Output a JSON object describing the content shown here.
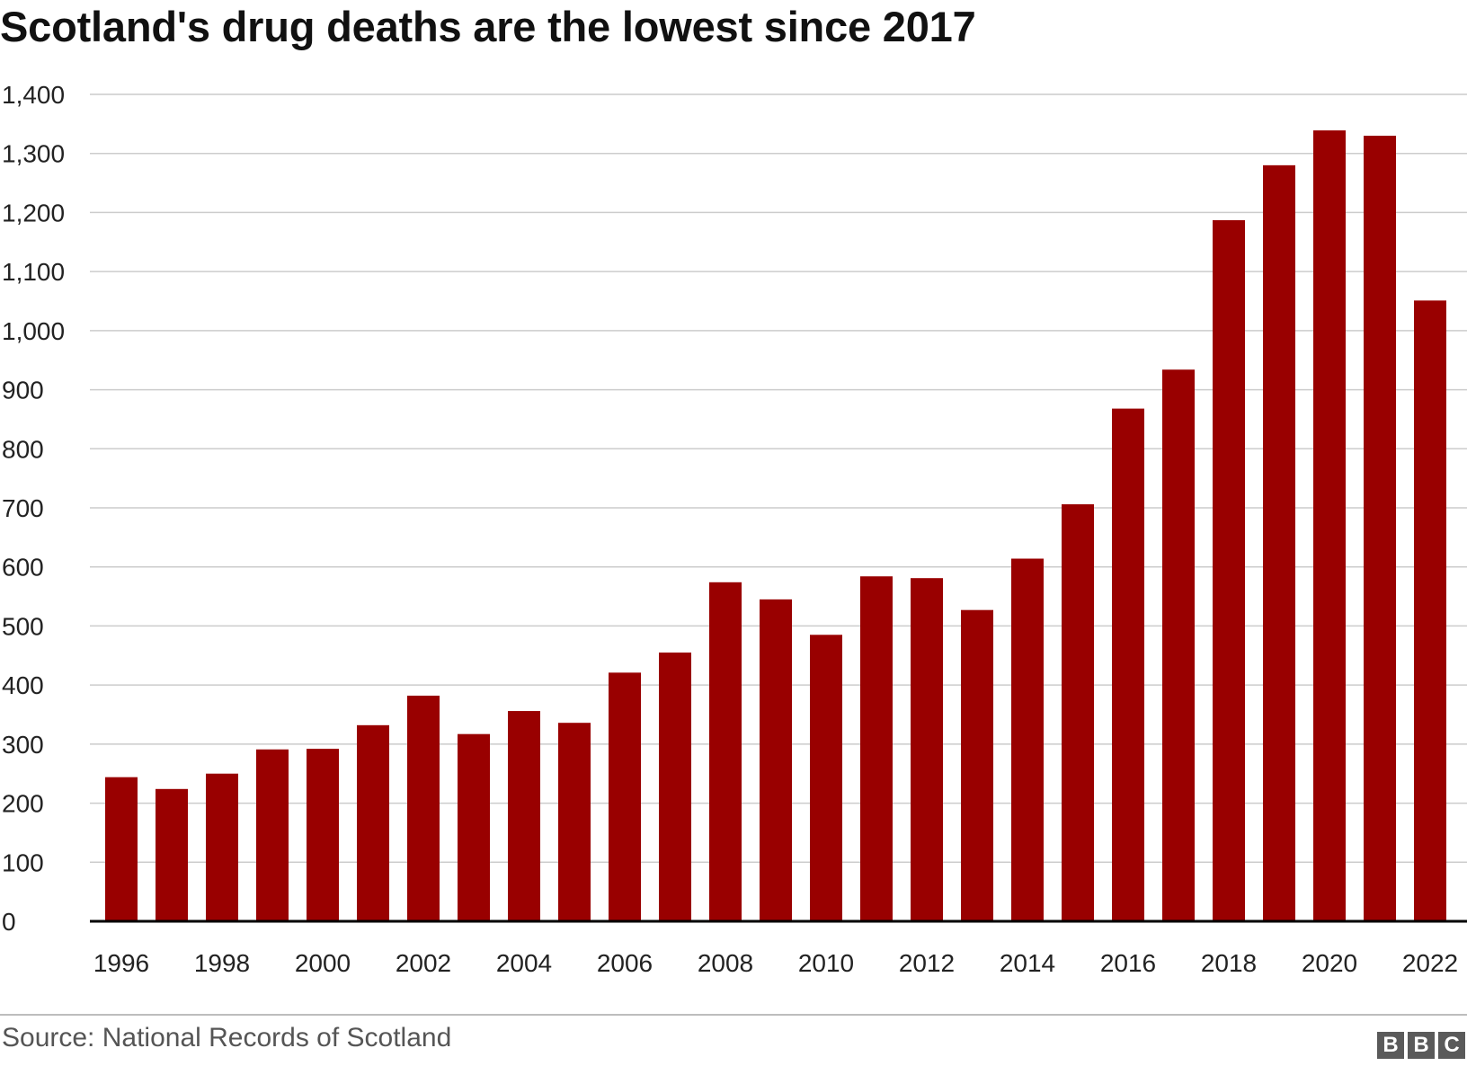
{
  "title": "Scotland's drug deaths are the lowest since 2017",
  "source": "Source: National Records of Scotland",
  "logo": {
    "letters": [
      "B",
      "B",
      "C"
    ]
  },
  "colors": {
    "bar": "#990000",
    "grid": "#cccccc",
    "axis": "#000000",
    "text": "#222222"
  },
  "chart_data": {
    "type": "bar",
    "categories": [
      "1996",
      "1997",
      "1998",
      "1999",
      "2000",
      "2001",
      "2002",
      "2003",
      "2004",
      "2005",
      "2006",
      "2007",
      "2008",
      "2009",
      "2010",
      "2011",
      "2012",
      "2013",
      "2014",
      "2015",
      "2016",
      "2017",
      "2018",
      "2019",
      "2020",
      "2021",
      "2022"
    ],
    "values": [
      244,
      224,
      250,
      291,
      292,
      332,
      382,
      317,
      356,
      336,
      421,
      455,
      574,
      545,
      485,
      584,
      581,
      527,
      614,
      706,
      868,
      934,
      1187,
      1280,
      1339,
      1330,
      1051
    ],
    "xtick_labels": [
      "1996",
      "",
      "1998",
      "",
      "2000",
      "",
      "2002",
      "",
      "2004",
      "",
      "2006",
      "",
      "2008",
      "",
      "2010",
      "",
      "2012",
      "",
      "2014",
      "",
      "2016",
      "",
      "2018",
      "",
      "2020",
      "",
      "2022"
    ],
    "yticks": [
      0,
      100,
      200,
      300,
      400,
      500,
      600,
      700,
      800,
      900,
      1000,
      1100,
      1200,
      1300,
      1400
    ],
    "ytick_labels": [
      "0",
      "100",
      "200",
      "300",
      "400",
      "500",
      "600",
      "700",
      "800",
      "900",
      "1,000",
      "1,100",
      "1,200",
      "1,300",
      "1,400"
    ],
    "ylim": [
      0,
      1400
    ],
    "grid": true,
    "legend": "none"
  }
}
